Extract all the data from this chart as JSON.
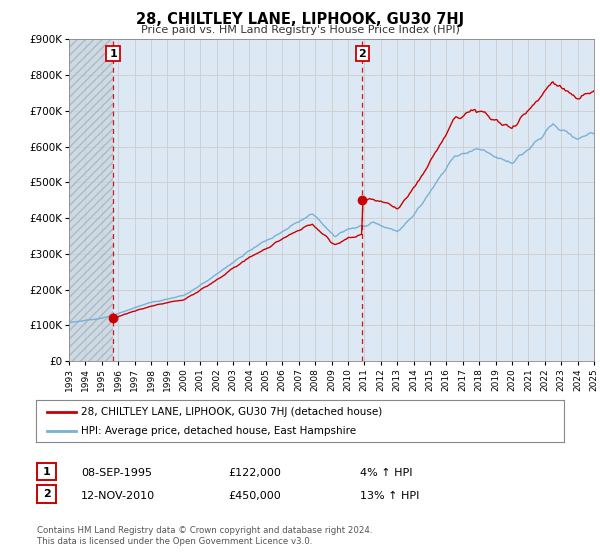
{
  "title": "28, CHILTLEY LANE, LIPHOOK, GU30 7HJ",
  "subtitle": "Price paid vs. HM Land Registry's House Price Index (HPI)",
  "legend_label_red": "28, CHILTLEY LANE, LIPHOOK, GU30 7HJ (detached house)",
  "legend_label_blue": "HPI: Average price, detached house, East Hampshire",
  "footnote1": "Contains HM Land Registry data © Crown copyright and database right 2024.",
  "footnote2": "This data is licensed under the Open Government Licence v3.0.",
  "xmin": 1993,
  "xmax": 2025,
  "ymin": 0,
  "ymax": 900000,
  "yticks": [
    0,
    100000,
    200000,
    300000,
    400000,
    500000,
    600000,
    700000,
    800000,
    900000
  ],
  "ytick_labels": [
    "£0",
    "£100K",
    "£200K",
    "£300K",
    "£400K",
    "£500K",
    "£600K",
    "£700K",
    "£800K",
    "£900K"
  ],
  "color_red": "#cc0000",
  "color_blue": "#7ab0d4",
  "color_grid": "#cccccc",
  "color_bg": "#dce9f5",
  "color_hatch": "#c0c8d0",
  "marker1_x": 1995.69,
  "marker1_y": 122000,
  "marker2_x": 2010.87,
  "marker2_y": 450000,
  "vline1_x": 1995.69,
  "vline2_x": 2010.87,
  "marker1_date": "08-SEP-1995",
  "marker1_price": "£122,000",
  "marker1_hpi": "4% ↑ HPI",
  "marker2_date": "12-NOV-2010",
  "marker2_price": "£450,000",
  "marker2_hpi": "13% ↑ HPI"
}
